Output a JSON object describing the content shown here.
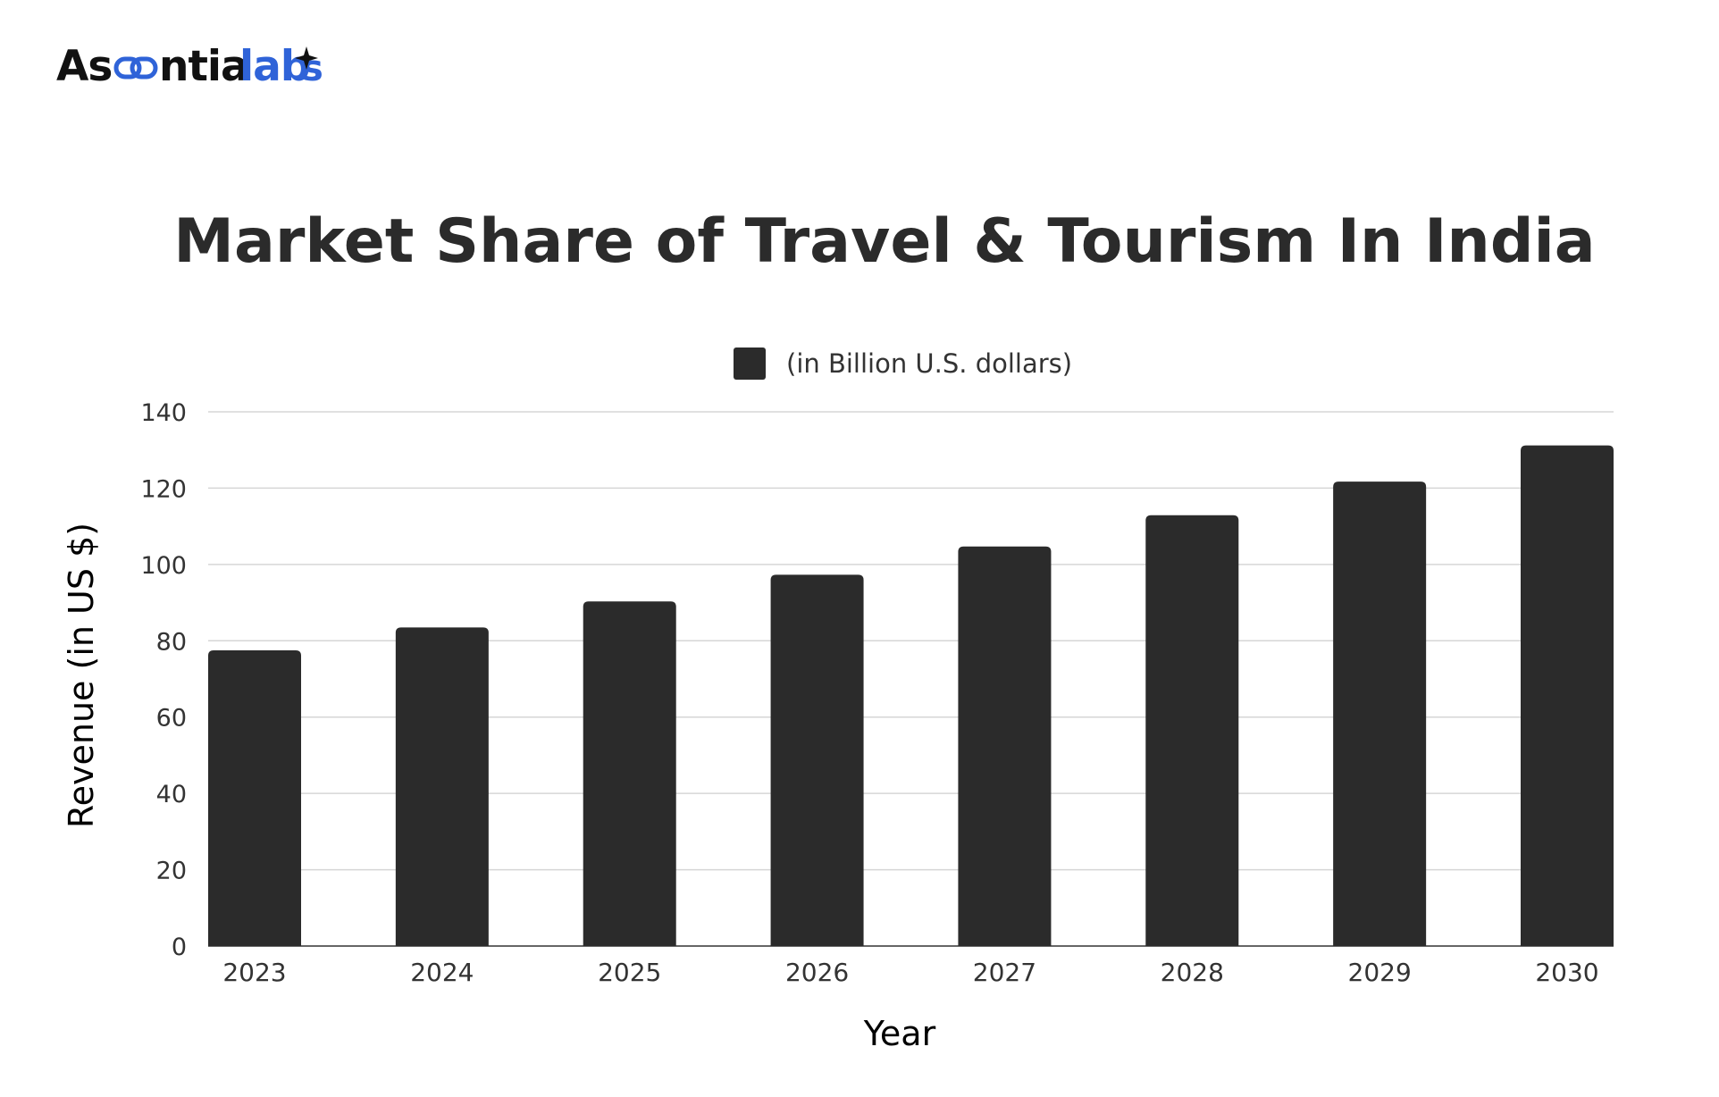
{
  "logo": {
    "text": "Ascentialabs",
    "colors": {
      "dark": "#111111",
      "accent": "#2f63d8"
    }
  },
  "chart_data": {
    "type": "bar",
    "title": "Market Share of Travel & Tourism In India",
    "xlabel": "Year",
    "ylabel": "Revenue (in US $)",
    "legend_position": "top-center",
    "grid": true,
    "categories": [
      "2023",
      "2024",
      "2025",
      "2026",
      "2027",
      "2028",
      "2029",
      "2030"
    ],
    "series": [
      {
        "name": "(in Billion U.S. dollars)",
        "color": "#2b2b2b",
        "values": [
          77.5,
          83.5,
          90.3,
          97.3,
          104.7,
          112.9,
          121.7,
          131.2
        ]
      }
    ],
    "ylim": [
      0,
      140
    ],
    "yticks": [
      "0",
      "20",
      "40",
      "60",
      "80",
      "100",
      "120",
      "140"
    ]
  }
}
